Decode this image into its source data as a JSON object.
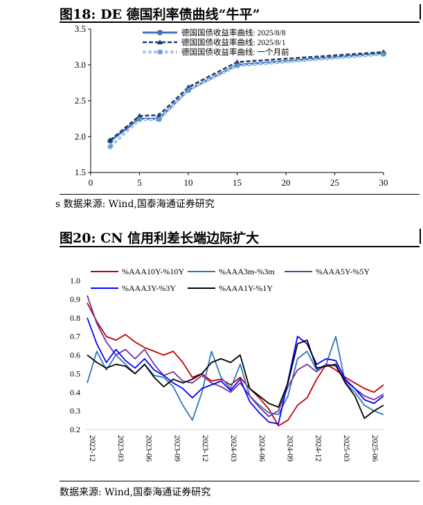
{
  "fig18": {
    "title": "图18:  DE 德国利率债曲线“牛平”",
    "source": "s 数据来源:  Wind,国泰海通证券研究"
  },
  "fig20": {
    "title": "图20:  CN 信用利差长端边际扩大",
    "source": "数据来源:  Wind,国泰海通证券研究"
  },
  "chart_data": [
    {
      "type": "line",
      "title": "",
      "xlabel": "",
      "ylabel": "",
      "xlim": [
        0,
        30
      ],
      "ylim": [
        1.5,
        3.5
      ],
      "xticks": [
        0,
        5,
        10,
        15,
        20,
        25,
        30
      ],
      "yticks": [
        1.5,
        2.0,
        2.5,
        3.0,
        3.5
      ],
      "x": [
        2,
        5,
        7,
        10,
        15,
        30
      ],
      "series": [
        {
          "name": "德国国债收益率曲线: 2025/8/8",
          "color": "#4472C4",
          "values": [
            1.94,
            2.25,
            2.25,
            2.65,
            3.0,
            3.16
          ]
        },
        {
          "name": "德国国债收益率曲线: 2025/8/1",
          "color": "#1F3864",
          "values": [
            1.95,
            2.29,
            2.3,
            2.69,
            3.04,
            3.18
          ]
        },
        {
          "name": "德国国债收益率曲线: 一个月前",
          "color": "#5B9BD5",
          "values": [
            1.86,
            2.24,
            2.24,
            2.65,
            2.99,
            3.15
          ]
        }
      ],
      "legend": "top-center"
    },
    {
      "type": "line",
      "title": "",
      "xlabel": "",
      "ylabel": "",
      "ylim": [
        0.2,
        1.0
      ],
      "yticks": [
        0.2,
        0.3,
        0.4,
        0.5,
        0.6,
        0.7,
        0.8,
        0.9,
        1.0
      ],
      "x_labels": [
        "2022-12",
        "2023-03",
        "2023-06",
        "2023-09",
        "2023-12",
        "2024-03",
        "2024-06",
        "2024-09",
        "2024-12",
        "2025-03",
        "2025-06"
      ],
      "n_points": 32,
      "series": [
        {
          "name": "%AAA10Y-%10Y",
          "color": "#C00000",
          "values": [
            0.88,
            0.78,
            0.7,
            0.68,
            0.71,
            0.67,
            0.64,
            0.62,
            0.6,
            0.62,
            0.56,
            0.48,
            0.5,
            0.46,
            0.47,
            0.44,
            0.48,
            0.42,
            0.37,
            0.31,
            0.22,
            0.25,
            0.33,
            0.37,
            0.47,
            0.55,
            0.52,
            0.48,
            0.45,
            0.42,
            0.4,
            0.44
          ]
        },
        {
          "name": "%AAA3m-%3m",
          "color": "#2E75B6",
          "values": [
            0.45,
            0.62,
            0.52,
            0.6,
            0.55,
            0.5,
            0.55,
            0.49,
            0.48,
            0.43,
            0.33,
            0.25,
            0.4,
            0.62,
            0.48,
            0.42,
            0.55,
            0.38,
            0.33,
            0.29,
            0.28,
            0.38,
            0.58,
            0.62,
            0.52,
            0.55,
            0.7,
            0.45,
            0.4,
            0.33,
            0.3,
            0.28
          ]
        },
        {
          "name": "%AAA5Y-%5Y",
          "color": "#7030A0",
          "values": [
            0.92,
            0.77,
            0.67,
            0.6,
            0.63,
            0.58,
            0.63,
            0.55,
            0.49,
            0.51,
            0.46,
            0.45,
            0.49,
            0.45,
            0.43,
            0.4,
            0.45,
            0.38,
            0.32,
            0.27,
            0.3,
            0.43,
            0.52,
            0.55,
            0.51,
            0.55,
            0.54,
            0.46,
            0.42,
            0.38,
            0.36,
            0.39
          ]
        },
        {
          "name": "%AAA3Y-%3Y",
          "color": "#0000FF",
          "values": [
            0.8,
            0.66,
            0.56,
            0.63,
            0.57,
            0.53,
            0.58,
            0.52,
            0.49,
            0.45,
            0.42,
            0.37,
            0.42,
            0.44,
            0.46,
            0.41,
            0.47,
            0.35,
            0.29,
            0.24,
            0.23,
            0.46,
            0.7,
            0.66,
            0.55,
            0.58,
            0.57,
            0.47,
            0.42,
            0.36,
            0.34,
            0.38
          ]
        },
        {
          "name": "%AAA1Y-%1Y",
          "color": "#000000",
          "values": [
            0.6,
            0.56,
            0.53,
            0.55,
            0.54,
            0.5,
            0.55,
            0.48,
            0.43,
            0.47,
            0.45,
            0.47,
            0.5,
            0.56,
            0.58,
            0.56,
            0.6,
            0.42,
            0.38,
            0.34,
            0.32,
            0.45,
            0.66,
            0.68,
            0.53,
            0.54,
            0.55,
            0.45,
            0.38,
            0.26,
            0.3,
            0.33
          ]
        }
      ],
      "legend": "top"
    }
  ]
}
